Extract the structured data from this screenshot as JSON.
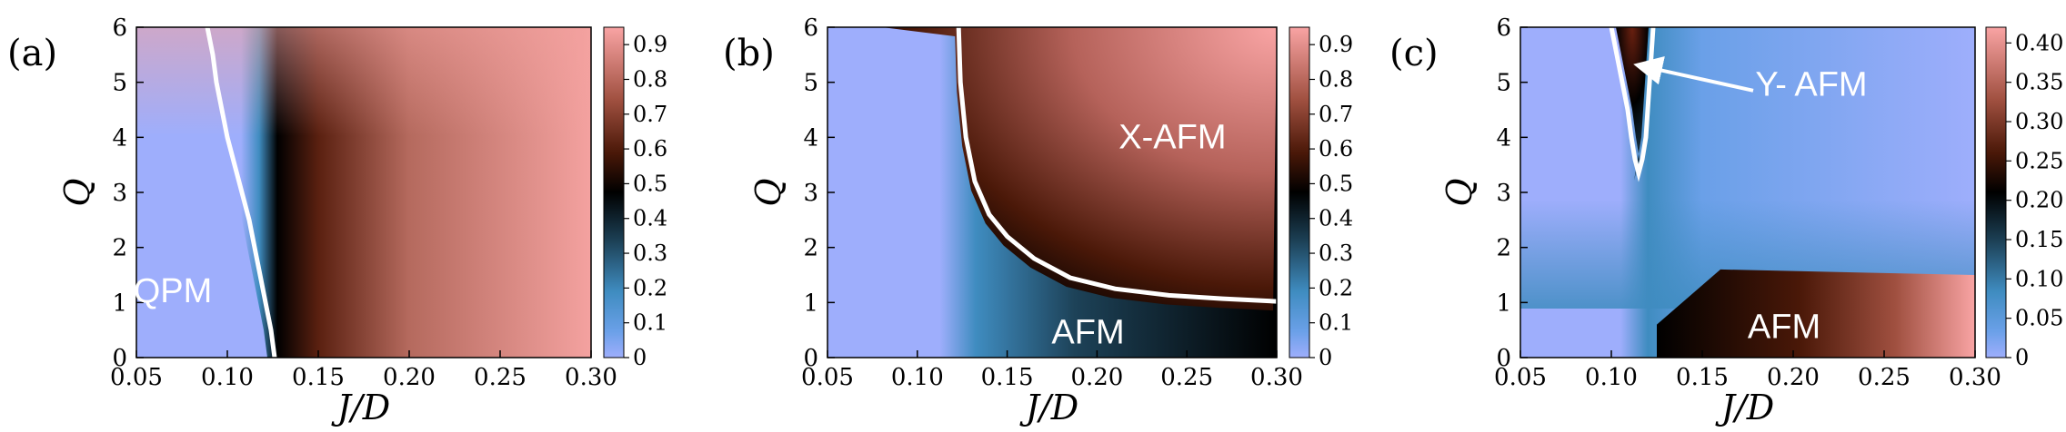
{
  "chart_data": [
    {
      "type": "heatmap",
      "panel_label": "(a)",
      "xlabel": "J/D",
      "ylabel": "Q",
      "xlim": [
        0.05,
        0.3
      ],
      "ylim": [
        0,
        6
      ],
      "x_ticks": [
        "0.05",
        "0.10",
        "0.15",
        "0.20",
        "0.25",
        "0.30"
      ],
      "y_ticks": [
        "0",
        "1",
        "2",
        "3",
        "4",
        "5",
        "6"
      ],
      "colorbar": {
        "min": 0,
        "max": 0.95,
        "ticks": [
          "0",
          "0.1",
          "0.2",
          "0.3",
          "0.4",
          "0.5",
          "0.6",
          "0.7",
          "0.8",
          "0.9"
        ]
      },
      "boundary": [
        [
          0.126,
          0
        ],
        [
          0.124,
          0.5
        ],
        [
          0.121,
          1.0
        ],
        [
          0.118,
          1.5
        ],
        [
          0.115,
          2.0
        ],
        [
          0.112,
          2.5
        ],
        [
          0.108,
          3.0
        ],
        [
          0.104,
          3.5
        ],
        [
          0.1,
          4.0
        ],
        [
          0.097,
          4.5
        ],
        [
          0.094,
          5.0
        ],
        [
          0.092,
          5.5
        ],
        [
          0.089,
          6.0
        ]
      ],
      "regions": [
        {
          "label": "QPM",
          "x": 0.07,
          "y": 1.2
        }
      ]
    },
    {
      "type": "heatmap",
      "panel_label": "(b)",
      "xlabel": "J/D",
      "ylabel": "Q",
      "xlim": [
        0.05,
        0.3
      ],
      "ylim": [
        0,
        6
      ],
      "x_ticks": [
        "0.05",
        "0.10",
        "0.15",
        "0.20",
        "0.25",
        "0.30"
      ],
      "y_ticks": [
        "0",
        "1",
        "2",
        "3",
        "4",
        "5",
        "6"
      ],
      "colorbar": {
        "min": 0,
        "max": 0.95,
        "ticks": [
          "0",
          "0.1",
          "0.2",
          "0.3",
          "0.4",
          "0.5",
          "0.6",
          "0.7",
          "0.8",
          "0.9"
        ]
      },
      "boundary": [
        [
          0.123,
          6.0
        ],
        [
          0.124,
          5.0
        ],
        [
          0.127,
          4.0
        ],
        [
          0.132,
          3.2
        ],
        [
          0.14,
          2.6
        ],
        [
          0.15,
          2.2
        ],
        [
          0.165,
          1.8
        ],
        [
          0.185,
          1.45
        ],
        [
          0.21,
          1.25
        ],
        [
          0.24,
          1.13
        ],
        [
          0.27,
          1.07
        ],
        [
          0.3,
          1.02
        ]
      ],
      "regions": [
        {
          "label": "X-AFM",
          "x": 0.242,
          "y": 4.0
        },
        {
          "label": "AFM",
          "x": 0.195,
          "y": 0.45
        }
      ]
    },
    {
      "type": "heatmap",
      "panel_label": "(c)",
      "xlabel": "J/D",
      "ylabel": "Q",
      "xlim": [
        0.05,
        0.3
      ],
      "ylim": [
        0,
        6
      ],
      "x_ticks": [
        "0.05",
        "0.10",
        "0.15",
        "0.20",
        "0.25",
        "0.30"
      ],
      "y_ticks": [
        "0",
        "1",
        "2",
        "3",
        "4",
        "5",
        "6"
      ],
      "colorbar": {
        "min": 0,
        "max": 0.42,
        "ticks": [
          "0",
          "0.05",
          "0.10",
          "0.15",
          "0.20",
          "0.25",
          "0.30",
          "0.35",
          "0.40"
        ]
      },
      "boundary": [
        [
          0.1,
          6.0
        ],
        [
          0.103,
          5.5
        ],
        [
          0.106,
          5.0
        ],
        [
          0.109,
          4.5
        ],
        [
          0.111,
          4.0
        ],
        [
          0.113,
          3.6
        ],
        [
          0.115,
          3.35
        ],
        [
          0.117,
          3.6
        ],
        [
          0.119,
          4.0
        ],
        [
          0.12,
          4.5
        ],
        [
          0.121,
          5.0
        ],
        [
          0.122,
          5.5
        ],
        [
          0.123,
          6.0
        ]
      ],
      "regions": [
        {
          "label": "Y- AFM",
          "x": 0.21,
          "y": 4.95
        },
        {
          "label": "AFM",
          "x": 0.195,
          "y": 0.55
        }
      ],
      "annotation": {
        "text": "Y- AFM",
        "arrow_from": [
          0.178,
          4.85
        ],
        "arrow_to": [
          0.116,
          5.3
        ]
      }
    }
  ]
}
